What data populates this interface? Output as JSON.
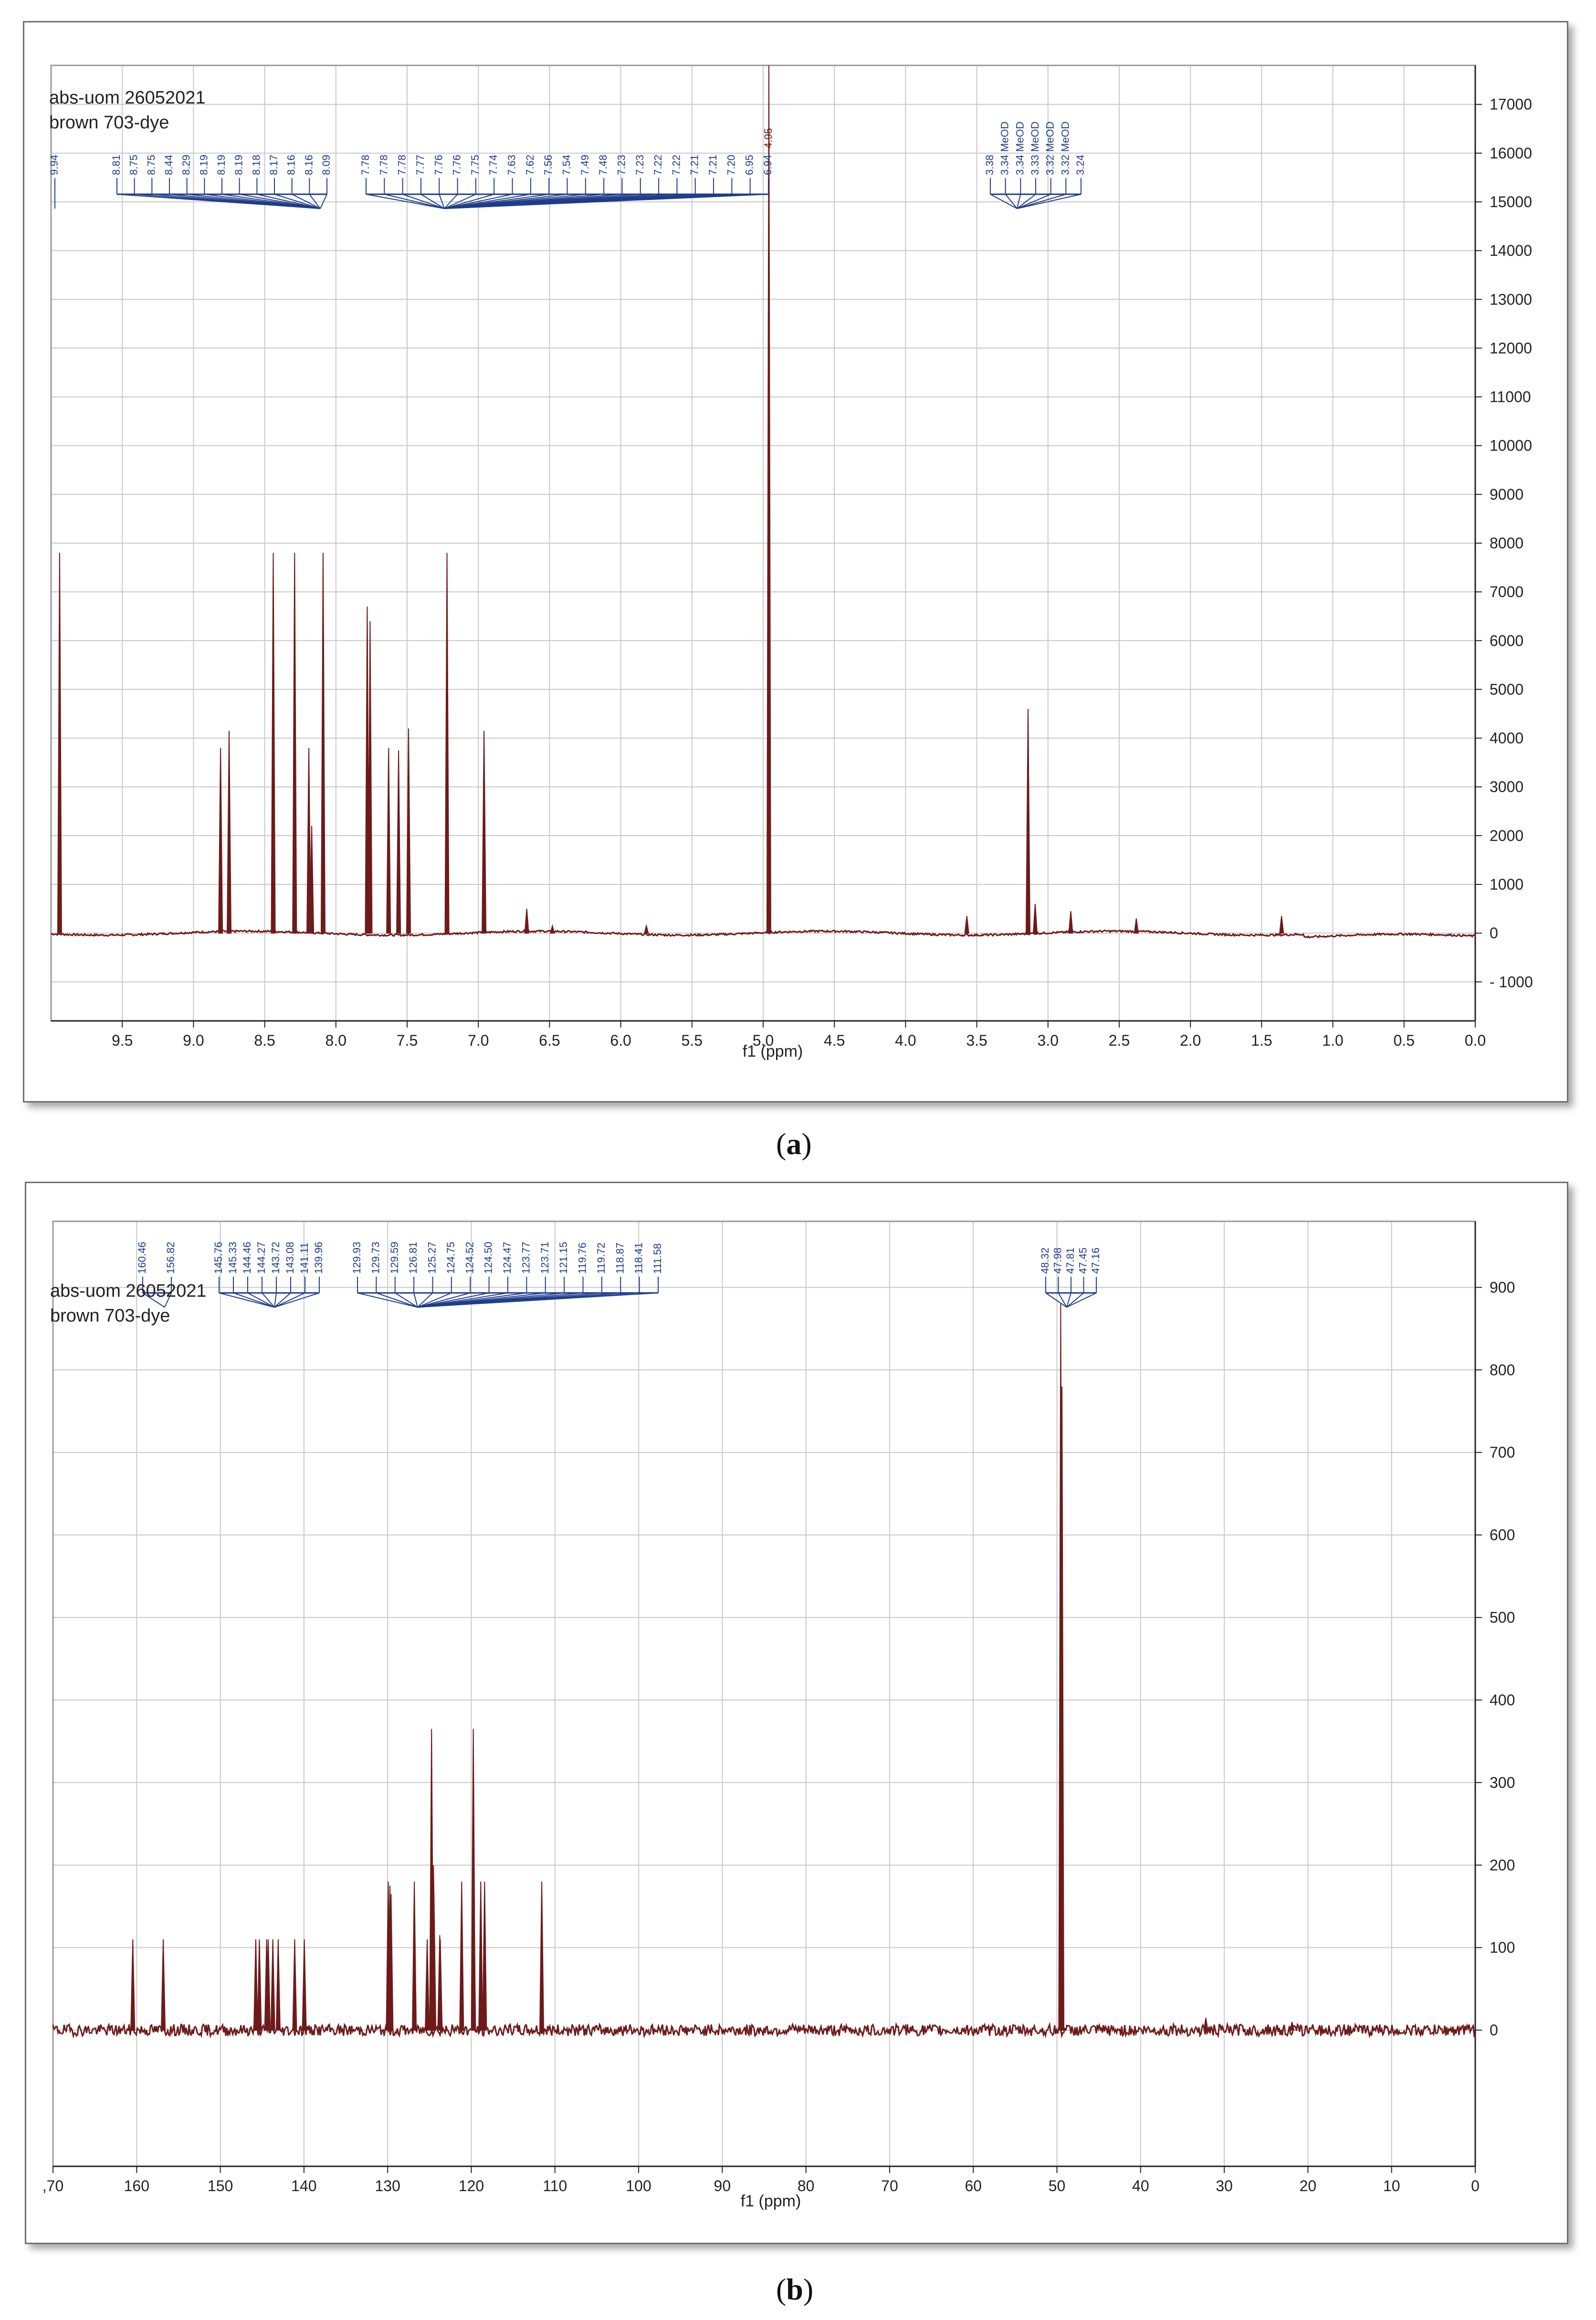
{
  "captions": {
    "a_open": "(",
    "a_letter": "a",
    "a_close": ")",
    "b_open": "(",
    "b_letter": "b",
    "b_close": ")"
  },
  "colors": {
    "spectrum": "#6e1a1a",
    "peak_label": "#1f3c8a",
    "grid": "#c8c8c8",
    "axis": "#222222"
  },
  "chart_data": [
    {
      "type": "line",
      "title": "abs-uom 26052021",
      "subtitle": "brown 703-dye",
      "xlabel": "f1 (ppm)",
      "ylabel": "",
      "xlim": [
        10.0,
        0.0
      ],
      "ylim": [
        -1800,
        17800
      ],
      "x_reversed": true,
      "grid": true,
      "x_ticks": [
        "9.5",
        "9.0",
        "8.5",
        "8.0",
        "7.5",
        "7.0",
        "6.5",
        "6.0",
        "5.5",
        "5.0",
        "4.5",
        "4.0",
        "3.5",
        "3.0",
        "2.5",
        "2.0",
        "1.5",
        "1.0",
        "0.5",
        "0.0"
      ],
      "y_ticks": [
        "17000",
        "16000",
        "15000",
        "14000",
        "13000",
        "12000",
        "11000",
        "10000",
        "9000",
        "8000",
        "7000",
        "6000",
        "5000",
        "4000",
        "3000",
        "2000",
        "1000",
        "0",
        "- 1000"
      ],
      "peaks": [
        {
          "x": 9.94,
          "y": 7800
        },
        {
          "x": 8.81,
          "y": 3800
        },
        {
          "x": 8.75,
          "y": 4150
        },
        {
          "x": 8.44,
          "y": 7800
        },
        {
          "x": 8.29,
          "y": 7800
        },
        {
          "x": 8.19,
          "y": 3800
        },
        {
          "x": 8.17,
          "y": 2200
        },
        {
          "x": 8.09,
          "y": 7800
        },
        {
          "x": 7.78,
          "y": 6700
        },
        {
          "x": 7.76,
          "y": 6400
        },
        {
          "x": 7.63,
          "y": 3800
        },
        {
          "x": 7.56,
          "y": 3750
        },
        {
          "x": 7.49,
          "y": 4200
        },
        {
          "x": 7.22,
          "y": 7800
        },
        {
          "x": 6.96,
          "y": 4150
        },
        {
          "x": 6.66,
          "y": 500
        },
        {
          "x": 6.48,
          "y": 150
        },
        {
          "x": 5.82,
          "y": 150
        },
        {
          "x": 4.96,
          "y": 17800
        },
        {
          "x": 3.57,
          "y": 350
        },
        {
          "x": 3.14,
          "y": 4600
        },
        {
          "x": 3.09,
          "y": 600
        },
        {
          "x": 2.84,
          "y": 450
        },
        {
          "x": 2.38,
          "y": 300
        },
        {
          "x": 1.36,
          "y": 350
        }
      ],
      "peak_labels_left": [
        "9.94"
      ],
      "peak_labels_group1": [
        "8.81",
        "8.75",
        "8.75",
        "8.44",
        "8.29",
        "8.19",
        "8.19",
        "8.19",
        "8.18",
        "8.17",
        "8.16",
        "8.16",
        "8.09"
      ],
      "peak_labels_group2": [
        "7.78",
        "7.78",
        "7.78",
        "7.77",
        "7.76",
        "7.76",
        "7.75",
        "7.74",
        "7.63",
        "7.62",
        "7.56",
        "7.54",
        "7.49",
        "7.48",
        "7.23",
        "7.23",
        "7.22",
        "7.22",
        "7.21",
        "7.21",
        "7.20",
        "6.95",
        "6.94"
      ],
      "peak_label_top": "4.95",
      "peak_labels_group3": [
        "3.38",
        "3.34 MeOD",
        "3.34 MeOD",
        "3.33 MeOD",
        "3.32 MeOD",
        "3.32 MeOD",
        "3.24"
      ]
    },
    {
      "type": "line",
      "title": "abs-uom 26052021",
      "subtitle": "brown 703-dye",
      "xlabel": "f1 (ppm)",
      "ylabel": "",
      "xlim": [
        170,
        0
      ],
      "ylim": [
        -165,
        980
      ],
      "x_reversed": true,
      "grid": true,
      "x_ticks": [
        ",70",
        "160",
        "150",
        "140",
        "130",
        "120",
        "110",
        "100",
        "90",
        "80",
        "70",
        "60",
        "50",
        "40",
        "30",
        "20",
        "10",
        "0"
      ],
      "y_ticks": [
        "900",
        "800",
        "700",
        "600",
        "500",
        "400",
        "300",
        "200",
        "100",
        "0"
      ],
      "peaks": [
        {
          "x": 160.46,
          "y": 110
        },
        {
          "x": 156.82,
          "y": 110
        },
        {
          "x": 145.76,
          "y": 110
        },
        {
          "x": 145.33,
          "y": 110
        },
        {
          "x": 144.46,
          "y": 110
        },
        {
          "x": 144.27,
          "y": 110
        },
        {
          "x": 143.72,
          "y": 110
        },
        {
          "x": 143.08,
          "y": 110
        },
        {
          "x": 141.11,
          "y": 110
        },
        {
          "x": 139.96,
          "y": 110
        },
        {
          "x": 129.93,
          "y": 180
        },
        {
          "x": 129.73,
          "y": 175
        },
        {
          "x": 129.59,
          "y": 165
        },
        {
          "x": 126.81,
          "y": 180
        },
        {
          "x": 125.27,
          "y": 110
        },
        {
          "x": 124.75,
          "y": 365
        },
        {
          "x": 124.52,
          "y": 200
        },
        {
          "x": 124.5,
          "y": 180
        },
        {
          "x": 124.47,
          "y": 170
        },
        {
          "x": 123.77,
          "y": 115
        },
        {
          "x": 123.71,
          "y": 110
        },
        {
          "x": 121.15,
          "y": 180
        },
        {
          "x": 119.76,
          "y": 365
        },
        {
          "x": 119.72,
          "y": 200
        },
        {
          "x": 118.87,
          "y": 180
        },
        {
          "x": 118.41,
          "y": 180
        },
        {
          "x": 111.58,
          "y": 180
        },
        {
          "x": 49.55,
          "y": 880
        },
        {
          "x": 49.4,
          "y": 780
        },
        {
          "x": 32.2,
          "y": 15
        },
        {
          "x": 21.9,
          "y": 10
        }
      ],
      "peak_labels_left": [
        "160.46",
        "156.82"
      ],
      "peak_labels_group1": [
        "145.76",
        "145.33",
        "144.46",
        "144.27",
        "143.72",
        "143.08",
        "141.11",
        "139.96"
      ],
      "peak_labels_group2": [
        "129.93",
        "129.73",
        "129.59",
        "126.81",
        "125.27",
        "124.75",
        "124.52",
        "124.50",
        "124.47",
        "123.77",
        "123.71",
        "121.15",
        "119.76",
        "119.72",
        "118.87",
        "118.41",
        "111.58"
      ],
      "peak_labels_group3": [
        "48.32",
        "47.98",
        "47.81",
        "47.45",
        "47.16"
      ]
    }
  ]
}
